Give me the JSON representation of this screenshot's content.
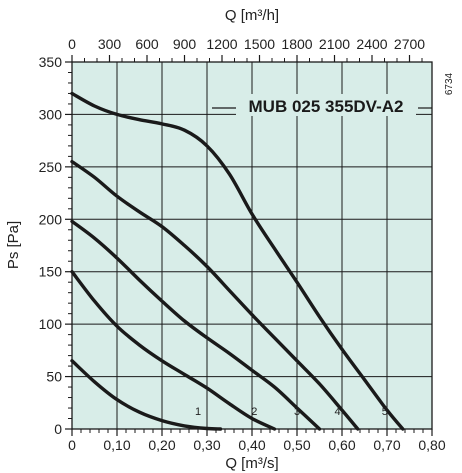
{
  "chart_data": {
    "type": "line",
    "title": "MUB 025 355DV-A2",
    "code": "6734",
    "xlabel": "Q [m³/s]",
    "x2label": "Q [m³/h]",
    "ylabel": "Ps [Pa]",
    "xlim": [
      0,
      0.8
    ],
    "ylim": [
      0,
      350
    ],
    "x_ticks": [
      "0",
      "0,10",
      "0,20",
      "0,30",
      "0,40",
      "0,50",
      "0,60",
      "0,70",
      "0,80"
    ],
    "x2_ticks": [
      "0",
      "300",
      "600",
      "900",
      "1200",
      "1500",
      "1800",
      "2100",
      "2400",
      "2700"
    ],
    "y_ticks": [
      "0",
      "50",
      "100",
      "150",
      "200",
      "250",
      "300",
      "350"
    ],
    "grid": true,
    "plot_bg": "#d8ede8",
    "line_color": "#1a1a1a",
    "series": [
      {
        "name": "1",
        "x": [
          0,
          0.05,
          0.1,
          0.15,
          0.2,
          0.25,
          0.3,
          0.33
        ],
        "y": [
          65,
          45,
          28,
          16,
          8,
          3,
          0.5,
          0
        ]
      },
      {
        "name": "2",
        "x": [
          0,
          0.05,
          0.1,
          0.15,
          0.2,
          0.25,
          0.3,
          0.35,
          0.4,
          0.45
        ],
        "y": [
          150,
          122,
          98,
          80,
          65,
          52,
          39,
          24,
          10,
          0
        ]
      },
      {
        "name": "3",
        "x": [
          0,
          0.05,
          0.1,
          0.15,
          0.2,
          0.25,
          0.3,
          0.35,
          0.4,
          0.45,
          0.5,
          0.55
        ],
        "y": [
          198,
          182,
          163,
          142,
          122,
          103,
          87,
          72,
          56,
          40,
          20,
          0
        ]
      },
      {
        "name": "4",
        "x": [
          0,
          0.05,
          0.1,
          0.15,
          0.2,
          0.25,
          0.3,
          0.35,
          0.4,
          0.45,
          0.5,
          0.55,
          0.6,
          0.635
        ],
        "y": [
          255,
          240,
          222,
          207,
          193,
          175,
          155,
          132,
          109,
          87,
          65,
          43,
          18,
          0
        ]
      },
      {
        "name": "5",
        "x": [
          0,
          0.05,
          0.1,
          0.15,
          0.2,
          0.25,
          0.3,
          0.35,
          0.4,
          0.45,
          0.5,
          0.55,
          0.6,
          0.65,
          0.7,
          0.735
        ],
        "y": [
          320,
          308,
          300,
          295,
          291,
          285,
          270,
          243,
          205,
          172,
          140,
          107,
          76,
          47,
          18,
          0
        ]
      }
    ],
    "series_label_x": [
      0.28,
      0.405,
      0.5,
      0.59,
      0.695
    ]
  }
}
